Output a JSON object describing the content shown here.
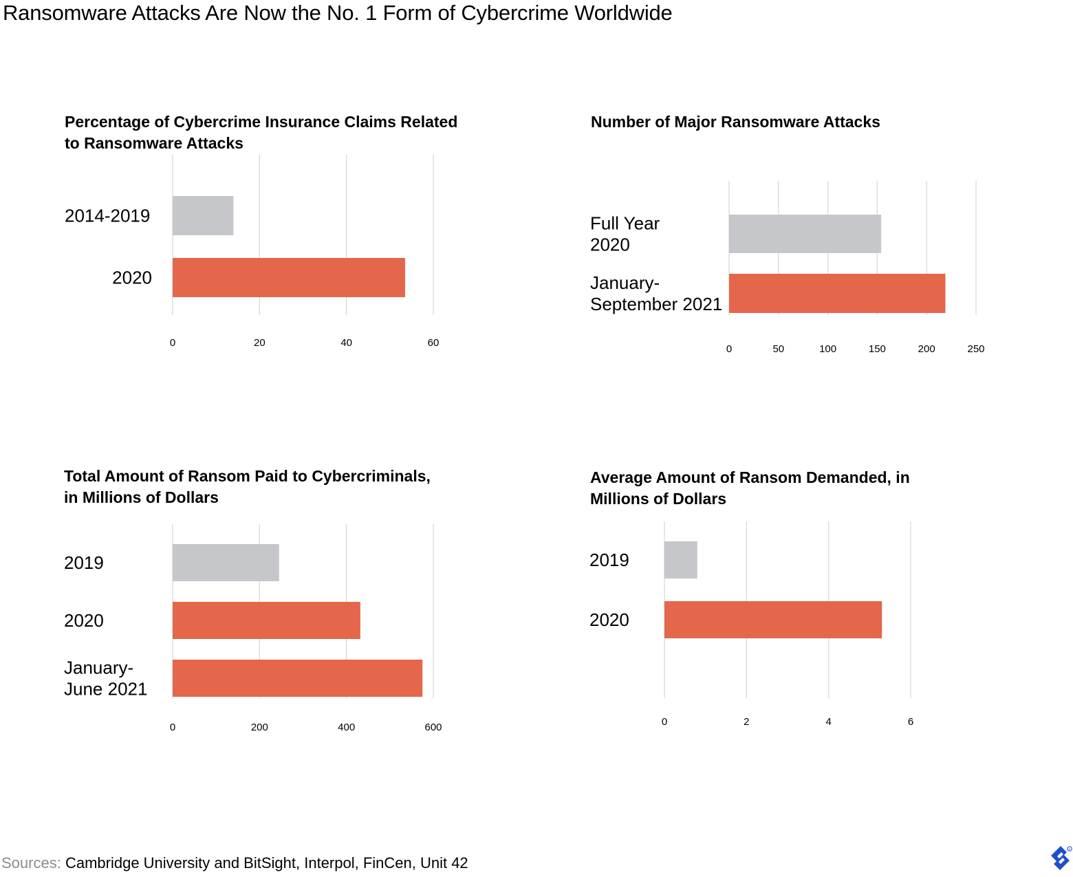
{
  "title": "Ransomware Attacks Are Now the No. 1 Form of Cybercrime Worldwide",
  "sources": {
    "label": "Sources:",
    "text": "Cambridge University and BitSight, Interpol, FinCen, Unit 42"
  },
  "colors": {
    "gray": "#c6c7cb",
    "accent": "#e4664b",
    "grid": "#d9d9d9"
  },
  "logo_icon": "toptal-logo-icon",
  "chart_data": [
    {
      "type": "bar",
      "orientation": "horizontal",
      "title_lines": [
        "Percentage of Cybercrime Insurance Claims Related",
        "to Ransomware Attacks"
      ],
      "category_lines": [
        [
          "2014-2019"
        ],
        [
          "2020"
        ]
      ],
      "values": [
        14,
        53.5
      ],
      "bar_colors": [
        "gray",
        "accent"
      ],
      "xlim": [
        0,
        60
      ],
      "ticks": [
        0,
        20,
        40,
        60
      ],
      "grid": true
    },
    {
      "type": "bar",
      "orientation": "horizontal",
      "title_lines": [
        "Number of Major Ransomware Attacks"
      ],
      "category_lines": [
        [
          "Full Year",
          "2020"
        ],
        [
          "January-",
          "September 2021"
        ]
      ],
      "values": [
        154,
        219
      ],
      "bar_colors": [
        "gray",
        "accent"
      ],
      "xlim": [
        0,
        250
      ],
      "ticks": [
        0,
        50,
        100,
        150,
        200,
        250
      ],
      "grid": true
    },
    {
      "type": "bar",
      "orientation": "horizontal",
      "title_lines": [
        "Total Amount of Ransom Paid to Cybercriminals,",
        "in Millions of Dollars"
      ],
      "category_lines": [
        [
          "2019"
        ],
        [
          "2020"
        ],
        [
          "January-",
          "June 2021"
        ]
      ],
      "values": [
        245,
        432,
        575
      ],
      "bar_colors": [
        "gray",
        "accent",
        "accent"
      ],
      "xlim": [
        0,
        600
      ],
      "ticks": [
        0,
        200,
        400,
        600
      ],
      "grid": true
    },
    {
      "type": "bar",
      "orientation": "horizontal",
      "title_lines": [
        "Average Amount of Ransom Demanded, in",
        "Millions of Dollars"
      ],
      "category_lines": [
        [
          "2019"
        ],
        [
          "2020"
        ]
      ],
      "values": [
        0.8,
        5.3
      ],
      "bar_colors": [
        "gray",
        "accent"
      ],
      "xlim": [
        0,
        6
      ],
      "ticks": [
        0,
        2,
        4,
        6
      ],
      "grid": true
    }
  ]
}
